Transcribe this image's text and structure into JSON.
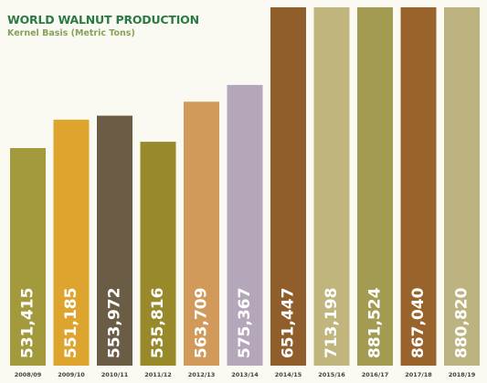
{
  "chart_data": {
    "type": "bar",
    "title": "WORLD WALNUT PRODUCTION",
    "subtitle": "Kernel Basis (Metric Tons)",
    "categories": [
      "2008/09",
      "2009/10",
      "2010/11",
      "2011/12",
      "2012/13",
      "2013/14",
      "2014/15",
      "2015/16",
      "2016/17",
      "2017/18",
      "2018/19"
    ],
    "values": [
      531415,
      551185,
      553972,
      535816,
      563709,
      575367,
      651447,
      713198,
      881524,
      867040,
      880820
    ],
    "value_labels": [
      "531,415",
      "551,185",
      "553,972",
      "535,816",
      "563,709",
      "575,367",
      "651,447",
      "713,198",
      "881,524",
      "867,040",
      "880,820"
    ],
    "colors": [
      "#a29a3c",
      "#dea52e",
      "#6b5c45",
      "#988a2b",
      "#d29a5a",
      "#b4a7b9",
      "#8f5e2b",
      "#c0b57c",
      "#a49b53",
      "#99642c",
      "#bcb380"
    ],
    "value_label_color": "#ffffff",
    "xlabel": "",
    "ylabel": "",
    "grid": false,
    "legend": "none"
  }
}
